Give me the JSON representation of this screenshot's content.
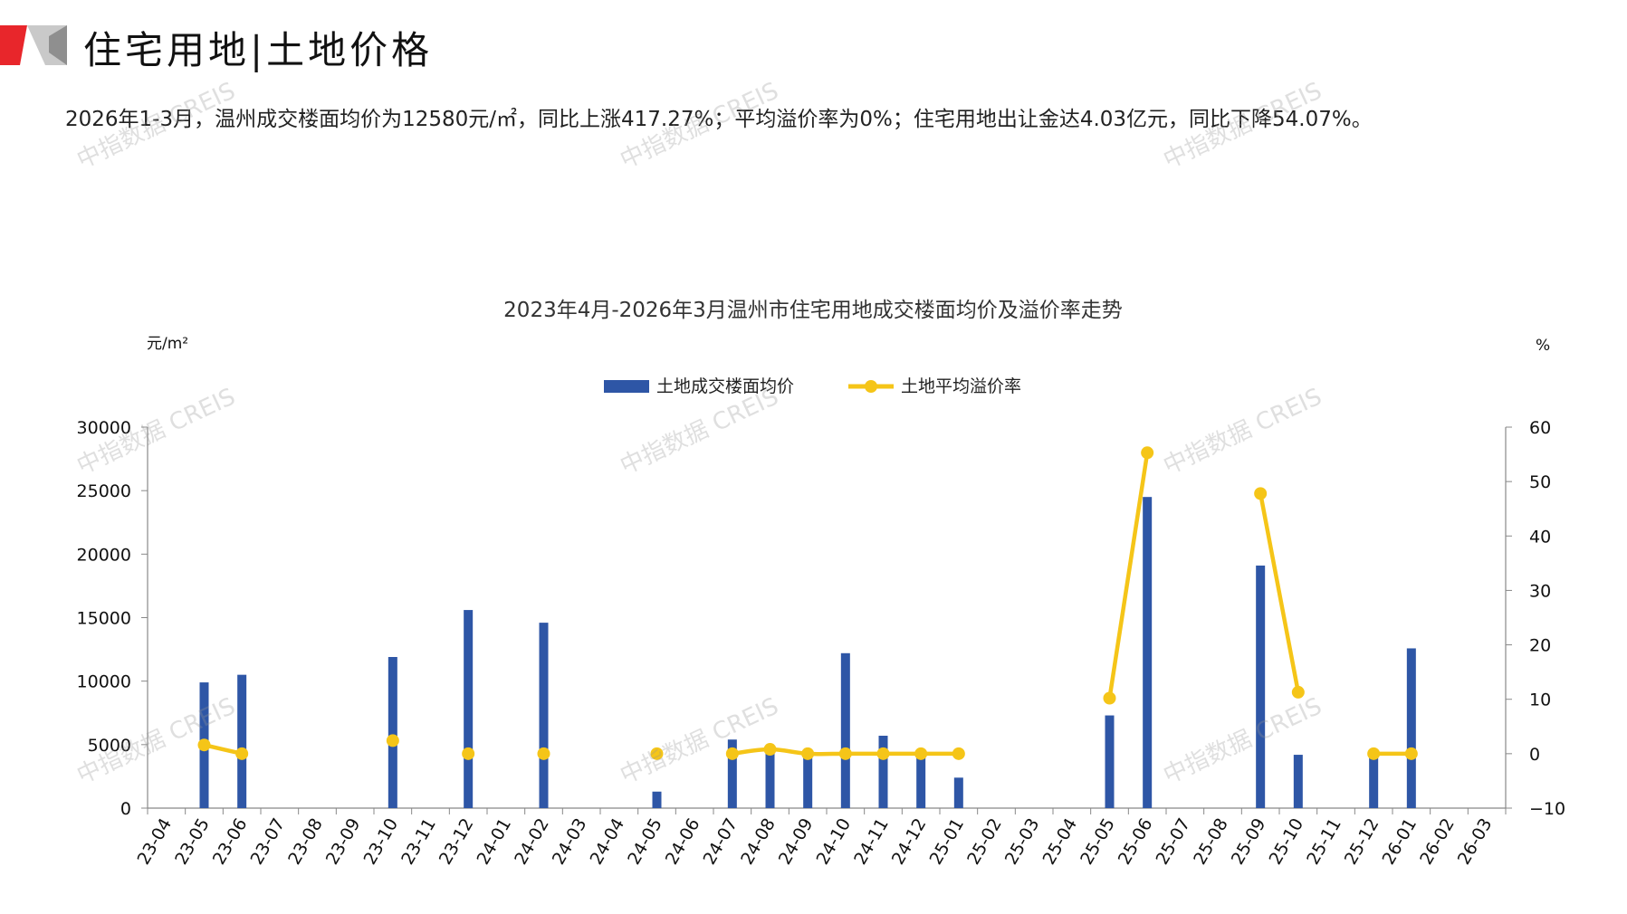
{
  "header": {
    "title": "住宅用地|土地价格",
    "summary": "2026年1-3月，温州成交楼面均价为12580元/㎡，同比上涨417.27%；平均溢价率为0%；住宅用地出让金达4.03亿元，同比下降54.07%。"
  },
  "watermark": "中指数据 CREIS",
  "colors": {
    "bar": "#2e56a6",
    "line": "#f5c518",
    "accent_red": "#e8262b",
    "accent_gray": "#9a9a9a"
  },
  "chart_data": {
    "type": "bar+line",
    "title": "2023年4月-2026年3月温州市住宅用地成交楼面均价及溢价率走势",
    "y_left_unit": "元/m²",
    "y_right_unit": "%",
    "y_left_ticks": [
      "30000",
      "25000",
      "20000",
      "15000",
      "10000",
      "5000",
      "0"
    ],
    "y_right_ticks": [
      "60",
      "50",
      "40",
      "30",
      "20",
      "10",
      "0",
      "−10"
    ],
    "ylim_left": [
      0,
      30000
    ],
    "ylim_right": [
      -10,
      60
    ],
    "legend_position": "top-center",
    "categories": [
      "23-04",
      "23-05",
      "23-06",
      "23-07",
      "23-08",
      "23-09",
      "23-10",
      "23-11",
      "23-12",
      "24-01",
      "24-02",
      "24-03",
      "24-04",
      "24-05",
      "24-06",
      "24-07",
      "24-08",
      "24-09",
      "24-10",
      "24-11",
      "24-12",
      "25-01",
      "25-02",
      "25-03",
      "25-04",
      "25-05",
      "25-06",
      "25-07",
      "25-08",
      "25-09",
      "25-10",
      "25-11",
      "25-12",
      "26-01",
      "26-02",
      "26-03"
    ],
    "series": [
      {
        "name": "土地成交楼面均价",
        "kind": "bar",
        "axis": "left",
        "values": [
          null,
          9900,
          10500,
          null,
          null,
          null,
          11900,
          null,
          15600,
          null,
          14600,
          null,
          null,
          1300,
          null,
          5400,
          4300,
          4000,
          12200,
          5700,
          4600,
          2400,
          null,
          null,
          null,
          7300,
          24500,
          null,
          null,
          19100,
          4200,
          null,
          4600,
          12580,
          null,
          null
        ]
      },
      {
        "name": "土地平均溢价率",
        "kind": "line",
        "axis": "right",
        "values": [
          null,
          1.6,
          0,
          null,
          null,
          null,
          2.4,
          null,
          0,
          null,
          0,
          null,
          null,
          0,
          null,
          0,
          0.8,
          0,
          0,
          0,
          0,
          0,
          null,
          null,
          null,
          10.2,
          55.3,
          null,
          null,
          47.8,
          11.3,
          null,
          0,
          0,
          null,
          null
        ]
      }
    ]
  }
}
